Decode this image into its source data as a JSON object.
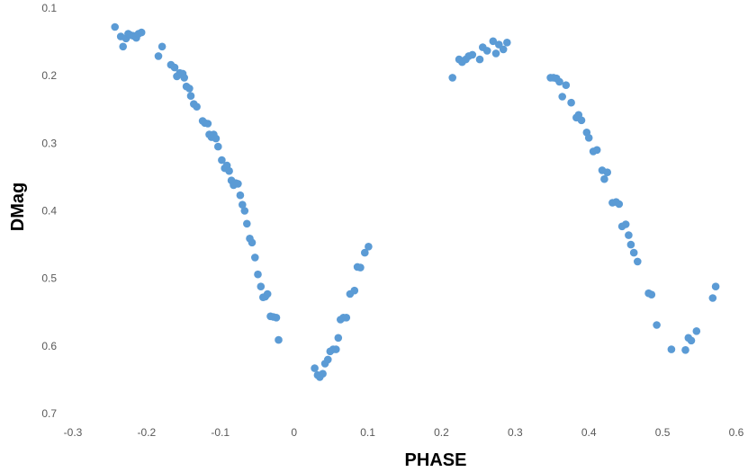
{
  "chart_data": {
    "type": "scatter",
    "title": "",
    "xlabel": "PHASE",
    "ylabel": "DMag",
    "xlim": [
      -0.3,
      0.6
    ],
    "ylim": [
      0.1,
      0.7
    ],
    "y_inverted": true,
    "xticks": [
      "-0.3",
      "-0.2",
      "-0.1",
      "0",
      "0.1",
      "0.2",
      "0.3",
      "0.4",
      "0.5",
      "0.6"
    ],
    "yticks": [
      "0.1",
      "0.2",
      "0.3",
      "0.4",
      "0.5",
      "0.6",
      "0.7"
    ],
    "grid": false,
    "legend": "none",
    "marker_color": "#5B9BD5",
    "series": [
      {
        "points": [
          [
            -0.243,
            0.128
          ],
          [
            -0.235,
            0.142
          ],
          [
            -0.232,
            0.157
          ],
          [
            -0.228,
            0.145
          ],
          [
            -0.225,
            0.138
          ],
          [
            -0.222,
            0.14
          ],
          [
            -0.218,
            0.141
          ],
          [
            -0.214,
            0.144
          ],
          [
            -0.211,
            0.138
          ],
          [
            -0.207,
            0.136
          ],
          [
            -0.184,
            0.171
          ],
          [
            -0.179,
            0.157
          ],
          [
            -0.167,
            0.184
          ],
          [
            -0.162,
            0.188
          ],
          [
            -0.159,
            0.201
          ],
          [
            -0.155,
            0.196
          ],
          [
            -0.151,
            0.197
          ],
          [
            -0.149,
            0.203
          ],
          [
            -0.146,
            0.216
          ],
          [
            -0.142,
            0.219
          ],
          [
            -0.14,
            0.23
          ],
          [
            -0.136,
            0.242
          ],
          [
            -0.132,
            0.246
          ],
          [
            -0.124,
            0.267
          ],
          [
            -0.121,
            0.27
          ],
          [
            -0.117,
            0.271
          ],
          [
            -0.115,
            0.287
          ],
          [
            -0.112,
            0.291
          ],
          [
            -0.109,
            0.287
          ],
          [
            -0.106,
            0.293
          ],
          [
            -0.103,
            0.305
          ],
          [
            -0.098,
            0.325
          ],
          [
            -0.094,
            0.337
          ],
          [
            -0.091,
            0.333
          ],
          [
            -0.088,
            0.341
          ],
          [
            -0.085,
            0.355
          ],
          [
            -0.082,
            0.362
          ],
          [
            -0.079,
            0.359
          ],
          [
            -0.076,
            0.36
          ],
          [
            -0.073,
            0.377
          ],
          [
            -0.07,
            0.391
          ],
          [
            -0.067,
            0.4
          ],
          [
            -0.064,
            0.419
          ],
          [
            -0.06,
            0.441
          ],
          [
            -0.057,
            0.447
          ],
          [
            -0.053,
            0.469
          ],
          [
            -0.049,
            0.494
          ],
          [
            -0.045,
            0.512
          ],
          [
            -0.042,
            0.528
          ],
          [
            -0.039,
            0.527
          ],
          [
            -0.036,
            0.523
          ],
          [
            -0.032,
            0.556
          ],
          [
            -0.028,
            0.557
          ],
          [
            -0.024,
            0.558
          ],
          [
            -0.021,
            0.591
          ],
          [
            0.028,
            0.633
          ],
          [
            0.032,
            0.643
          ],
          [
            0.035,
            0.646
          ],
          [
            0.039,
            0.641
          ],
          [
            0.042,
            0.626
          ],
          [
            0.046,
            0.62
          ],
          [
            0.049,
            0.608
          ],
          [
            0.053,
            0.605
          ],
          [
            0.057,
            0.605
          ],
          [
            0.06,
            0.588
          ],
          [
            0.063,
            0.561
          ],
          [
            0.067,
            0.558
          ],
          [
            0.071,
            0.558
          ],
          [
            0.076,
            0.523
          ],
          [
            0.082,
            0.518
          ],
          [
            0.086,
            0.483
          ],
          [
            0.09,
            0.484
          ],
          [
            0.096,
            0.462
          ],
          [
            0.101,
            0.453
          ],
          [
            0.215,
            0.203
          ],
          [
            0.224,
            0.176
          ],
          [
            0.228,
            0.18
          ],
          [
            0.233,
            0.176
          ],
          [
            0.237,
            0.171
          ],
          [
            0.242,
            0.169
          ],
          [
            0.252,
            0.176
          ],
          [
            0.256,
            0.158
          ],
          [
            0.262,
            0.163
          ],
          [
            0.27,
            0.149
          ],
          [
            0.274,
            0.167
          ],
          [
            0.278,
            0.154
          ],
          [
            0.284,
            0.161
          ],
          [
            0.289,
            0.151
          ],
          [
            0.348,
            0.203
          ],
          [
            0.352,
            0.203
          ],
          [
            0.356,
            0.204
          ],
          [
            0.36,
            0.209
          ],
          [
            0.364,
            0.231
          ],
          [
            0.369,
            0.214
          ],
          [
            0.376,
            0.24
          ],
          [
            0.383,
            0.262
          ],
          [
            0.386,
            0.258
          ],
          [
            0.39,
            0.266
          ],
          [
            0.397,
            0.284
          ],
          [
            0.4,
            0.292
          ],
          [
            0.406,
            0.312
          ],
          [
            0.411,
            0.31
          ],
          [
            0.418,
            0.34
          ],
          [
            0.421,
            0.353
          ],
          [
            0.425,
            0.343
          ],
          [
            0.432,
            0.388
          ],
          [
            0.437,
            0.387
          ],
          [
            0.441,
            0.39
          ],
          [
            0.445,
            0.423
          ],
          [
            0.45,
            0.42
          ],
          [
            0.454,
            0.436
          ],
          [
            0.457,
            0.45
          ],
          [
            0.461,
            0.462
          ],
          [
            0.466,
            0.475
          ],
          [
            0.481,
            0.522
          ],
          [
            0.485,
            0.524
          ],
          [
            0.492,
            0.569
          ],
          [
            0.512,
            0.605
          ],
          [
            0.531,
            0.606
          ],
          [
            0.535,
            0.588
          ],
          [
            0.539,
            0.592
          ],
          [
            0.546,
            0.578
          ],
          [
            0.568,
            0.529
          ],
          [
            0.572,
            0.512
          ]
        ]
      }
    ]
  }
}
